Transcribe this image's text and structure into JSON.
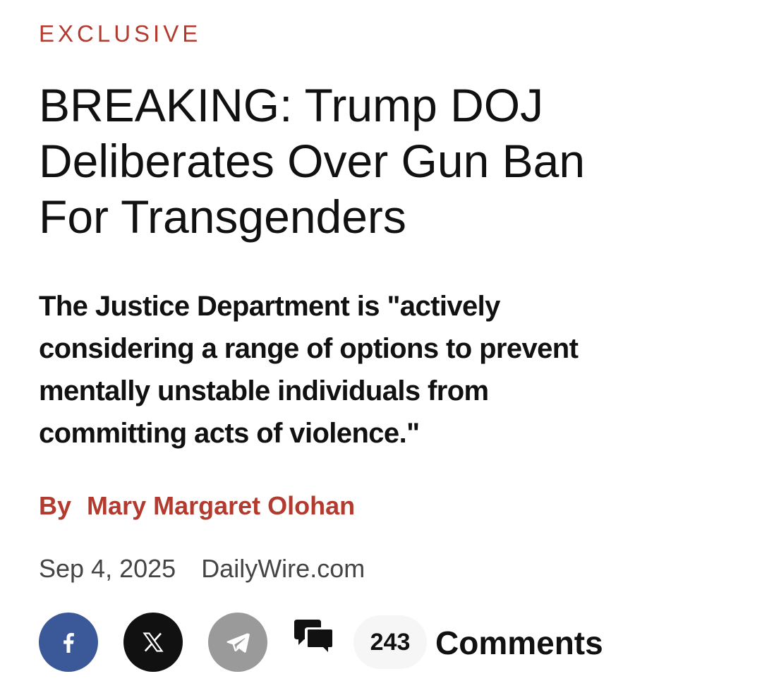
{
  "article": {
    "kicker": "EXCLUSIVE",
    "headline_lines": [
      "BREAKING: Trump DOJ",
      "Deliberates Over Gun Ban",
      "For Transgenders"
    ],
    "dek_lines": [
      "The Justice Department is \"actively",
      "considering a range of options to prevent",
      "mentally unstable individuals from",
      "committing acts of violence.\""
    ],
    "byline": {
      "prefix": "By",
      "author": "Mary Margaret Olohan"
    },
    "meta": {
      "date": "Sep 4, 2025",
      "source": "DailyWire.com"
    }
  },
  "share": {
    "facebook_icon": "facebook-icon",
    "x_icon": "x-icon",
    "telegram_icon": "telegram-icon",
    "comment_icon": "comment-bubbles-icon",
    "comment_count": "243",
    "comments_label": "Comments"
  },
  "colors": {
    "accent_red": "#b23a2e",
    "facebook_blue": "#3b5998",
    "x_black": "#111111",
    "telegram_gray": "#9a9a9a",
    "text": "#111111",
    "meta_gray": "#444444"
  }
}
